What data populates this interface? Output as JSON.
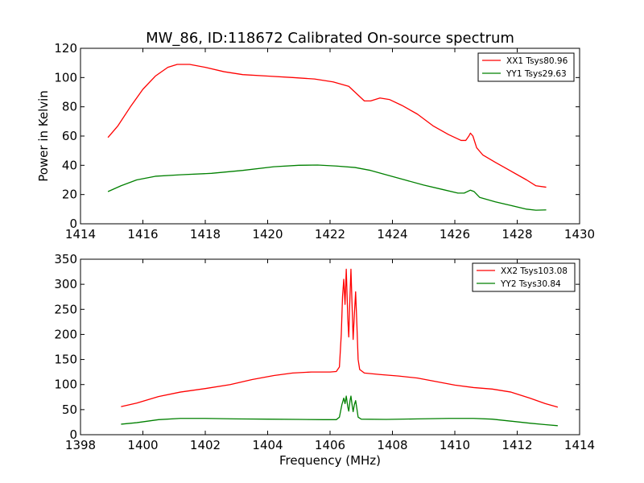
{
  "chart_data": [
    {
      "type": "line",
      "title": "MW_86, ID:118672 Calibrated On-source spectrum",
      "xlabel": "",
      "ylabel": "Power in Kelvin",
      "xlim": [
        1414,
        1430
      ],
      "ylim": [
        0,
        120
      ],
      "xticks": [
        "1414",
        "1416",
        "1418",
        "1420",
        "1422",
        "1424",
        "1426",
        "1428",
        "1430"
      ],
      "yticks": [
        "0",
        "20",
        "40",
        "60",
        "80",
        "100",
        "120"
      ],
      "legend": "top-right",
      "grid": false,
      "series": [
        {
          "name": "XX1 Tsys80.96",
          "color": "#ff0000",
          "points": [
            [
              1414.88,
              59
            ],
            [
              1415.2,
              67
            ],
            [
              1415.6,
              80
            ],
            [
              1416.0,
              92
            ],
            [
              1416.4,
              101
            ],
            [
              1416.8,
              107
            ],
            [
              1417.1,
              109
            ],
            [
              1417.5,
              109
            ],
            [
              1418.0,
              107
            ],
            [
              1418.6,
              104
            ],
            [
              1419.2,
              102
            ],
            [
              1420.0,
              101
            ],
            [
              1420.8,
              100
            ],
            [
              1421.5,
              99
            ],
            [
              1422.1,
              97
            ],
            [
              1422.6,
              94
            ],
            [
              1422.9,
              88
            ],
            [
              1423.1,
              84
            ],
            [
              1423.3,
              84
            ],
            [
              1423.6,
              86
            ],
            [
              1423.9,
              85
            ],
            [
              1424.3,
              81
            ],
            [
              1424.8,
              75
            ],
            [
              1425.3,
              67
            ],
            [
              1425.8,
              61
            ],
            [
              1426.2,
              57
            ],
            [
              1426.35,
              57
            ],
            [
              1426.45,
              60
            ],
            [
              1426.5,
              62
            ],
            [
              1426.58,
              60
            ],
            [
              1426.7,
              52
            ],
            [
              1426.9,
              47
            ],
            [
              1427.3,
              42
            ],
            [
              1427.8,
              36
            ],
            [
              1428.3,
              30
            ],
            [
              1428.6,
              26
            ],
            [
              1428.93,
              25
            ]
          ]
        },
        {
          "name": "YY1 Tsys29.63",
          "color": "#008000",
          "points": [
            [
              1414.88,
              22
            ],
            [
              1415.3,
              26
            ],
            [
              1415.8,
              30
            ],
            [
              1416.4,
              32.5
            ],
            [
              1417.2,
              33.5
            ],
            [
              1418.2,
              34.5
            ],
            [
              1419.2,
              36.5
            ],
            [
              1420.2,
              39
            ],
            [
              1421.0,
              40
            ],
            [
              1421.6,
              40.2
            ],
            [
              1422.2,
              39.5
            ],
            [
              1422.8,
              38.5
            ],
            [
              1423.3,
              36.5
            ],
            [
              1423.8,
              33.5
            ],
            [
              1424.4,
              30
            ],
            [
              1425.0,
              26.5
            ],
            [
              1425.6,
              23.5
            ],
            [
              1426.1,
              21
            ],
            [
              1426.3,
              21
            ],
            [
              1426.5,
              23
            ],
            [
              1426.62,
              22
            ],
            [
              1426.8,
              18
            ],
            [
              1427.3,
              15
            ],
            [
              1427.8,
              12.5
            ],
            [
              1428.3,
              10
            ],
            [
              1428.6,
              9.3
            ],
            [
              1428.93,
              9.5
            ]
          ]
        }
      ]
    },
    {
      "type": "line",
      "title": "",
      "xlabel": "Frequency (MHz)",
      "ylabel": "",
      "xlim": [
        1398,
        1414
      ],
      "ylim": [
        0,
        350
      ],
      "xticks": [
        "1398",
        "1400",
        "1402",
        "1404",
        "1406",
        "1408",
        "1410",
        "1412",
        "1414"
      ],
      "yticks": [
        "0",
        "50",
        "100",
        "150",
        "200",
        "250",
        "300",
        "350"
      ],
      "legend": "top-right",
      "grid": false,
      "series": [
        {
          "name": "XX2 Tsys103.08",
          "color": "#ff0000",
          "points": [
            [
              1399.3,
              56
            ],
            [
              1399.8,
              63
            ],
            [
              1400.5,
              76
            ],
            [
              1401.2,
              85
            ],
            [
              1402.0,
              92
            ],
            [
              1402.8,
              100
            ],
            [
              1403.5,
              110
            ],
            [
              1404.2,
              118
            ],
            [
              1404.8,
              123
            ],
            [
              1405.4,
              125
            ],
            [
              1406.0,
              125
            ],
            [
              1406.2,
              126
            ],
            [
              1406.3,
              135
            ],
            [
              1406.36,
              200
            ],
            [
              1406.4,
              275
            ],
            [
              1406.44,
              310
            ],
            [
              1406.48,
              260
            ],
            [
              1406.52,
              330
            ],
            [
              1406.57,
              230
            ],
            [
              1406.6,
              195
            ],
            [
              1406.63,
              260
            ],
            [
              1406.67,
              330
            ],
            [
              1406.71,
              250
            ],
            [
              1406.74,
              190
            ],
            [
              1406.78,
              240
            ],
            [
              1406.82,
              285
            ],
            [
              1406.86,
              220
            ],
            [
              1406.9,
              150
            ],
            [
              1406.95,
              130
            ],
            [
              1407.1,
              123
            ],
            [
              1407.6,
              120
            ],
            [
              1408.2,
              117
            ],
            [
              1408.8,
              113
            ],
            [
              1409.4,
              106
            ],
            [
              1410.0,
              99
            ],
            [
              1410.6,
              94
            ],
            [
              1411.2,
              91
            ],
            [
              1411.8,
              85
            ],
            [
              1412.4,
              73
            ],
            [
              1412.9,
              62
            ],
            [
              1413.3,
              55
            ]
          ]
        },
        {
          "name": "YY2 Tsys30.84",
          "color": "#008000",
          "points": [
            [
              1399.3,
              21
            ],
            [
              1399.8,
              24
            ],
            [
              1400.5,
              30
            ],
            [
              1401.2,
              32.5
            ],
            [
              1402.0,
              32.5
            ],
            [
              1403.0,
              31.5
            ],
            [
              1404.0,
              31
            ],
            [
              1405.0,
              30.5
            ],
            [
              1405.8,
              30
            ],
            [
              1406.2,
              30
            ],
            [
              1406.3,
              35
            ],
            [
              1406.38,
              60
            ],
            [
              1406.44,
              73
            ],
            [
              1406.48,
              62
            ],
            [
              1406.52,
              77
            ],
            [
              1406.57,
              55
            ],
            [
              1406.6,
              47
            ],
            [
              1406.64,
              68
            ],
            [
              1406.67,
              77
            ],
            [
              1406.71,
              58
            ],
            [
              1406.74,
              46
            ],
            [
              1406.78,
              60
            ],
            [
              1406.82,
              68
            ],
            [
              1406.86,
              52
            ],
            [
              1406.9,
              35
            ],
            [
              1407.0,
              31
            ],
            [
              1407.8,
              30.5
            ],
            [
              1408.8,
              31.5
            ],
            [
              1409.8,
              32.5
            ],
            [
              1410.6,
              32.5
            ],
            [
              1411.2,
              31
            ],
            [
              1411.8,
              27
            ],
            [
              1412.4,
              23
            ],
            [
              1412.9,
              20
            ],
            [
              1413.3,
              18
            ]
          ]
        }
      ]
    }
  ]
}
